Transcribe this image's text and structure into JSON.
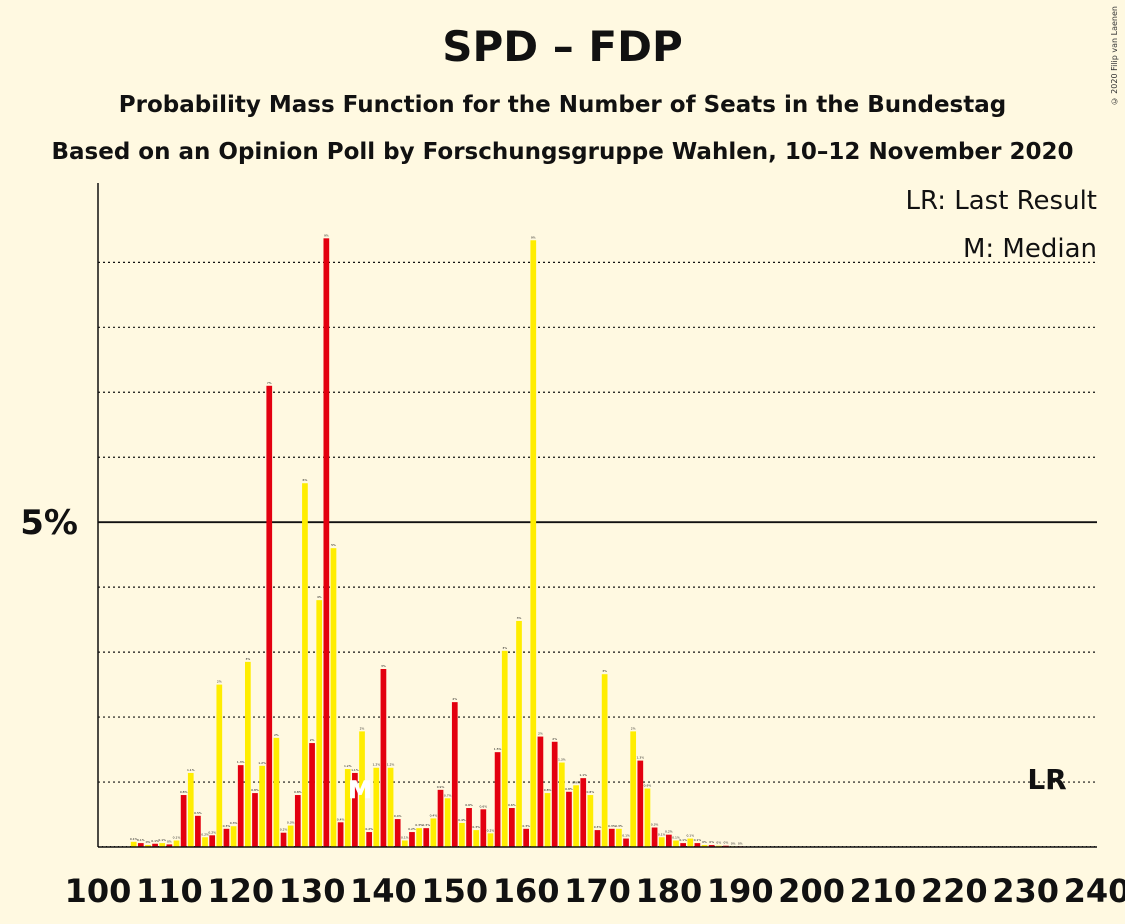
{
  "title": "SPD – FDP",
  "subtitle_1": "Probability Mass Function for the Number of Seats in the Bundestag",
  "subtitle_2": "Based on an Opinion Poll by Forschungsgruppe Wahlen, 10–12 November 2020",
  "copyright": "© 2020 Filip van Laenen",
  "legend": {
    "last_result": "LR: Last Result",
    "median": "M: Median"
  },
  "colors": {
    "red": "#E3000F",
    "yellow": "#FFED00",
    "background": "#FFF9E1"
  },
  "chart_data": {
    "type": "bar",
    "xlim": [
      100,
      240
    ],
    "ylim": [
      0,
      10
    ],
    "x_ticks": [
      "100",
      "110",
      "120",
      "130",
      "140",
      "150",
      "160",
      "170",
      "180",
      "190",
      "200",
      "210",
      "220",
      "230",
      "240"
    ],
    "y_tick_label": "5%",
    "last_result_label": "LR",
    "last_result_seat": 233,
    "median_label": "M",
    "median_seat": 137,
    "x": [
      105,
      106,
      107,
      108,
      109,
      110,
      111,
      112,
      113,
      114,
      115,
      116,
      117,
      118,
      119,
      120,
      121,
      122,
      123,
      124,
      125,
      126,
      127,
      128,
      129,
      130,
      131,
      132,
      133,
      134,
      135,
      136,
      137,
      138,
      139,
      140,
      141,
      142,
      143,
      144,
      145,
      146,
      147,
      148,
      149,
      150,
      151,
      152,
      153,
      154,
      155,
      156,
      157,
      158,
      159,
      160,
      161,
      162,
      163,
      164,
      165,
      166,
      167,
      168,
      169,
      170,
      171,
      172,
      173,
      174,
      175,
      176,
      177,
      178,
      179,
      180,
      181,
      182,
      183,
      184,
      185,
      186,
      187,
      188,
      189,
      190
    ],
    "values": [
      0.08,
      0.06,
      0.03,
      0.05,
      0.06,
      0.04,
      0.1,
      0.8,
      1.14,
      0.48,
      0.15,
      0.18,
      2.5,
      0.28,
      0.32,
      1.26,
      2.85,
      0.83,
      1.25,
      7.1,
      1.68,
      0.22,
      0.33,
      0.8,
      5.6,
      1.6,
      3.8,
      9.37,
      4.6,
      0.38,
      1.2,
      1.14,
      1.78,
      0.23,
      1.22,
      2.74,
      1.22,
      0.43,
      0.1,
      0.23,
      0.29,
      0.29,
      0.44,
      0.88,
      0.75,
      2.23,
      0.37,
      0.6,
      0.26,
      0.58,
      0.21,
      1.46,
      3.02,
      0.6,
      3.48,
      0.28,
      9.34,
      1.7,
      0.83,
      1.62,
      1.3,
      0.85,
      0.95,
      1.06,
      0.8,
      0.26,
      2.66,
      0.28,
      0.28,
      0.13,
      1.78,
      1.33,
      0.9,
      0.3,
      0.15,
      0.19,
      0.1,
      0.06,
      0.13,
      0.06,
      0.03,
      0.03,
      0.02,
      0.02,
      0.01,
      0.01
    ],
    "data_labels": [
      "0.1%",
      "0.1%",
      "0%",
      "0.1%",
      "0.1%",
      "0%",
      "0.1%",
      "0.8%",
      "1.1%",
      "0.5%",
      "0.2%",
      "0.2%",
      "2%",
      "0.3%",
      "0.3%",
      "1.3%",
      "3%",
      "0.8%",
      "1.2%",
      "7%",
      "2%",
      "0.2%",
      "0.3%",
      "0.8%",
      "6%",
      "2%",
      "4%",
      "9%",
      "5%",
      "0.4%",
      "1.2%",
      "1.1%",
      "2%",
      "0.2%",
      "1.2%",
      "3%",
      "1.2%",
      "0.4%",
      "0.1%",
      "0.2%",
      "0.3%",
      "0.3%",
      "0.4%",
      "0.9%",
      "0.7%",
      "2%",
      "0.4%",
      "0.6%",
      "0.3%",
      "0.6%",
      "0.2%",
      "1.5%",
      "3%",
      "0.6%",
      "3%",
      "0.3%",
      "9%",
      "2%",
      "0.8%",
      "2%",
      "1.3%",
      "0.8%",
      "0.9%",
      "1.1%",
      "0.8%",
      "0.3%",
      "3%",
      "0.3%",
      "0.3%",
      "0.1%",
      "2%",
      "1.3%",
      "0.9%",
      "0.3%",
      "0.1%",
      "0.2%",
      "0.1%",
      "0.1%",
      "0.1%",
      "0.1%",
      "0%",
      "0%",
      "0%",
      "0%",
      "0%",
      "0%"
    ]
  }
}
